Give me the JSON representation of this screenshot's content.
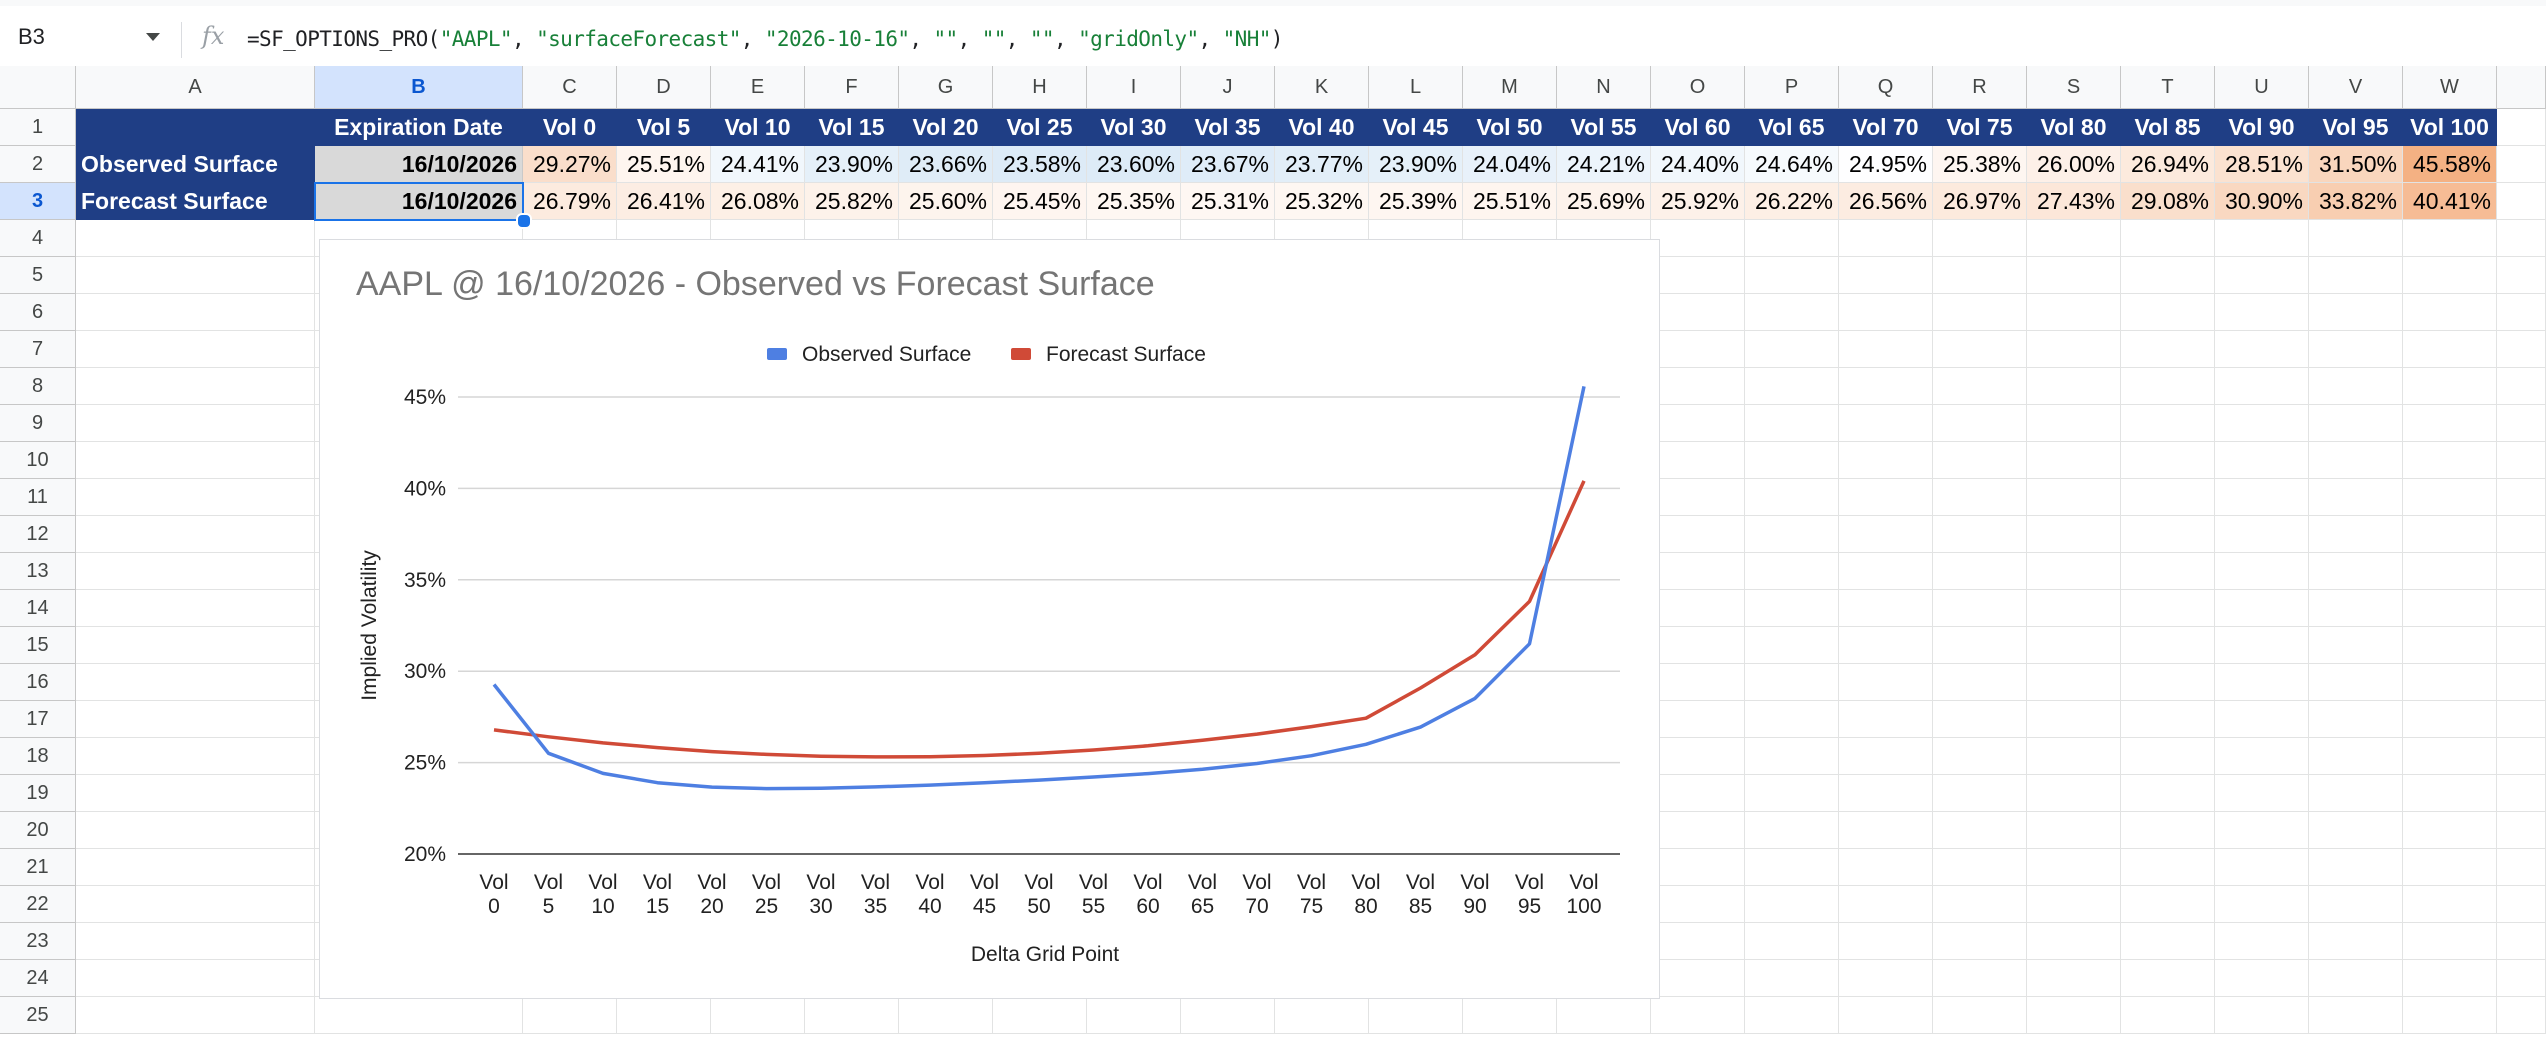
{
  "formula_bar": {
    "name_box": "B3",
    "fx_glyph": "fx",
    "formula_parts": [
      "=SF_OPTIONS_PRO(",
      "\"AAPL\"",
      ", ",
      "\"surfaceForecast\"",
      ", ",
      "\"2026-10-16\"",
      ", ",
      "\"\"",
      ", ",
      "\"\"",
      ", ",
      "\"\"",
      ", ",
      "\"gridOnly\"",
      ", ",
      "\"NH\"",
      ")"
    ]
  },
  "columns": [
    "A",
    "B",
    "C",
    "D",
    "E",
    "F",
    "G",
    "H",
    "I",
    "J",
    "K",
    "L",
    "M",
    "N",
    "O",
    "P",
    "Q",
    "R",
    "S",
    "T",
    "U",
    "V",
    "W"
  ],
  "rows": [
    "1",
    "2",
    "3",
    "4",
    "5",
    "6",
    "7",
    "8",
    "9",
    "10",
    "11",
    "12",
    "13",
    "14",
    "15",
    "16",
    "17",
    "18",
    "19",
    "20",
    "21",
    "22",
    "23",
    "24",
    "25"
  ],
  "sheet": {
    "header_row": [
      "Expiration Date",
      "Vol 0",
      "Vol 5",
      "Vol 10",
      "Vol 15",
      "Vol 20",
      "Vol 25",
      "Vol 30",
      "Vol 35",
      "Vol 40",
      "Vol 45",
      "Vol 50",
      "Vol 55",
      "Vol 60",
      "Vol 65",
      "Vol 70",
      "Vol 75",
      "Vol 80",
      "Vol 85",
      "Vol 90",
      "Vol 95",
      "Vol 100"
    ],
    "data_rows": [
      {
        "label": "Observed Surface",
        "date": "16/10/2026",
        "values": [
          "29.27%",
          "25.51%",
          "24.41%",
          "23.90%",
          "23.66%",
          "23.58%",
          "23.60%",
          "23.67%",
          "23.77%",
          "23.90%",
          "24.04%",
          "24.21%",
          "24.40%",
          "24.64%",
          "24.95%",
          "25.38%",
          "26.00%",
          "26.94%",
          "28.51%",
          "31.50%",
          "45.58%"
        ]
      },
      {
        "label": "Forecast Surface",
        "date": "16/10/2026",
        "values": [
          "26.79%",
          "26.41%",
          "26.08%",
          "25.82%",
          "25.60%",
          "25.45%",
          "25.35%",
          "25.31%",
          "25.32%",
          "25.39%",
          "25.51%",
          "25.69%",
          "25.92%",
          "26.22%",
          "26.56%",
          "26.97%",
          "27.43%",
          "29.08%",
          "30.90%",
          "33.82%",
          "40.41%"
        ]
      }
    ],
    "selected_cell": "B3",
    "colors": {
      "header_bg": "#1f3e85",
      "date_bg": "#d9d9d9",
      "scale_low": "#ddebf7",
      "scale_mid": "#ffffff",
      "scale_high": "#f4b183"
    }
  },
  "chart_data": {
    "type": "line",
    "title": "AAPL @ 16/10/2026 - Observed vs Forecast Surface",
    "xlabel": "Delta Grid Point",
    "ylabel": "Implied Volatility",
    "categories": [
      [
        "Vol",
        "0"
      ],
      [
        "Vol",
        "5"
      ],
      [
        "Vol",
        "10"
      ],
      [
        "Vol",
        "15"
      ],
      [
        "Vol",
        "20"
      ],
      [
        "Vol",
        "25"
      ],
      [
        "Vol",
        "30"
      ],
      [
        "Vol",
        "35"
      ],
      [
        "Vol",
        "40"
      ],
      [
        "Vol",
        "45"
      ],
      [
        "Vol",
        "50"
      ],
      [
        "Vol",
        "55"
      ],
      [
        "Vol",
        "60"
      ],
      [
        "Vol",
        "65"
      ],
      [
        "Vol",
        "70"
      ],
      [
        "Vol",
        "75"
      ],
      [
        "Vol",
        "80"
      ],
      [
        "Vol",
        "85"
      ],
      [
        "Vol",
        "90"
      ],
      [
        "Vol",
        "95"
      ],
      [
        "Vol",
        "100"
      ]
    ],
    "ylim": [
      0.2,
      0.45
    ],
    "yticks": [
      0.2,
      0.25,
      0.3,
      0.35,
      0.4,
      0.45
    ],
    "ytick_labels": [
      "20%",
      "25%",
      "30%",
      "35%",
      "40%",
      "45%"
    ],
    "grid": true,
    "legend": "top-center",
    "series": [
      {
        "name": "Observed Surface",
        "color": "#4e7fe2",
        "values": [
          0.2927,
          0.2551,
          0.2441,
          0.239,
          0.2366,
          0.2358,
          0.236,
          0.2367,
          0.2377,
          0.239,
          0.2404,
          0.2421,
          0.244,
          0.2464,
          0.2495,
          0.2538,
          0.26,
          0.2694,
          0.2851,
          0.315,
          0.4558
        ]
      },
      {
        "name": "Forecast Surface",
        "color": "#d04a37",
        "values": [
          0.2679,
          0.2641,
          0.2608,
          0.2582,
          0.256,
          0.2545,
          0.2535,
          0.2531,
          0.2532,
          0.2539,
          0.2551,
          0.2569,
          0.2592,
          0.2622,
          0.2656,
          0.2697,
          0.2743,
          0.2908,
          0.309,
          0.3382,
          0.4041
        ]
      }
    ]
  }
}
